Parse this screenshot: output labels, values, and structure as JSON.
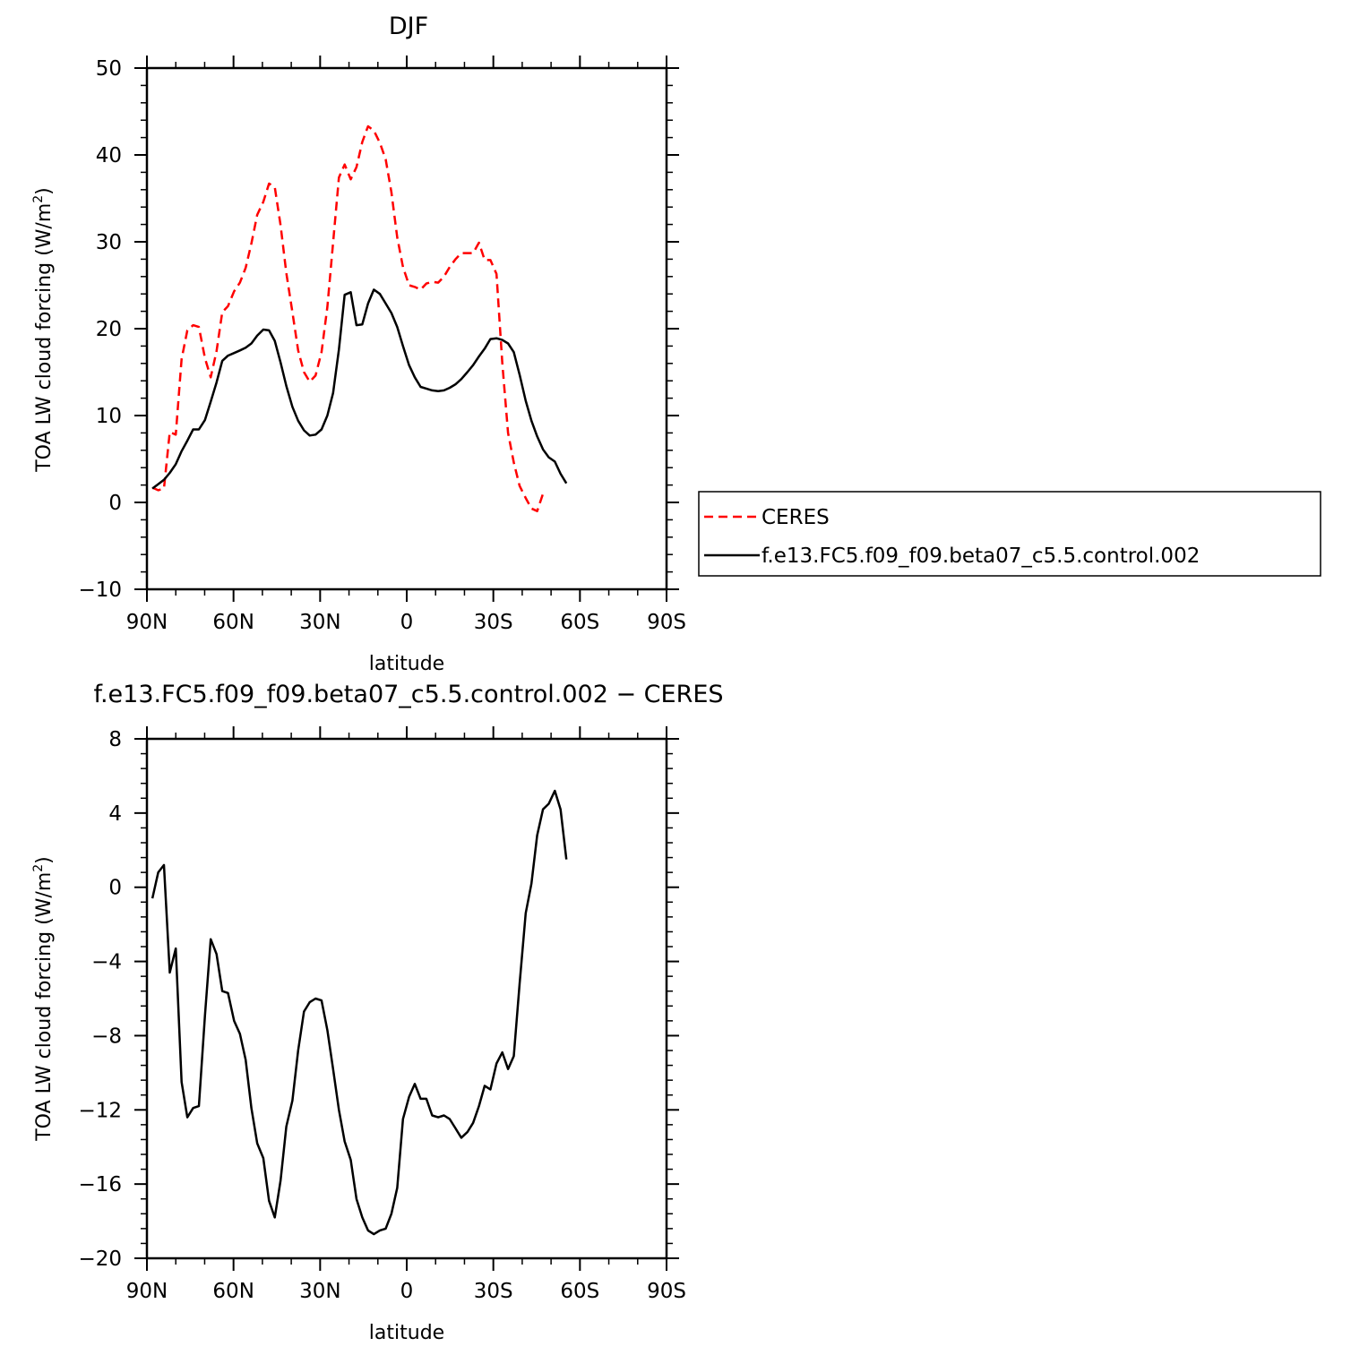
{
  "chart_data": [
    {
      "type": "line",
      "title": "DJF",
      "xlabel": "latitude",
      "ylabel": "TOA LW cloud forcing (W/m²)",
      "ylabel_main": "TOA LW cloud forcing (W/m",
      "ylabel_sup": "2",
      "ylabel_close": ")",
      "xlim": [
        -90,
        90
      ],
      "ylim": [
        -10,
        50
      ],
      "xticks": [
        -90,
        -60,
        -30,
        0,
        30,
        60,
        90
      ],
      "xtick_labels": [
        "90N",
        "60N",
        "30N",
        "0",
        "30S",
        "60S",
        "90S"
      ],
      "yticks": [
        -10,
        0,
        10,
        20,
        30,
        40,
        50
      ],
      "ytick_labels": [
        "−10",
        "0",
        "10",
        "20",
        "30",
        "40",
        "50"
      ],
      "legend_position": "right",
      "series": [
        {
          "name": "CERES",
          "color": "#ff0000",
          "dash": "dashed",
          "x": [
            -88.1,
            -86.1,
            -84.1,
            -82.1,
            -80.0,
            -78.0,
            -76.0,
            -74.0,
            -72.0,
            -69.9,
            -67.9,
            -65.9,
            -63.9,
            -61.9,
            -59.8,
            -57.8,
            -55.8,
            -53.8,
            -51.8,
            -49.7,
            -47.7,
            -45.7,
            -43.7,
            -41.7,
            -39.6,
            -37.6,
            -35.6,
            -33.6,
            -31.6,
            -29.5,
            -27.5,
            -25.5,
            -23.5,
            -21.5,
            -19.4,
            -17.4,
            -15.4,
            -13.4,
            -11.4,
            -9.3,
            -7.3,
            -5.3,
            -3.3,
            -1.3,
            0.8,
            2.8,
            4.8,
            6.8,
            8.8,
            10.9,
            12.9,
            14.9,
            16.9,
            18.9,
            21.0,
            23.0,
            25.0,
            27.0,
            29.0,
            31.1,
            33.1,
            35.1,
            37.1,
            39.1,
            41.2,
            43.2,
            45.2,
            47.2,
            49.2,
            51.3,
            53.3,
            55.3,
            57.3,
            59.3,
            61.4,
            63.4,
            65.4,
            67.4,
            69.4,
            71.5,
            73.5,
            75.5,
            77.5,
            79.5,
            81.6,
            83.6,
            85.6,
            87.6,
            89.6
          ],
          "values": [
            1.7,
            1.4,
            1.6,
            8.1,
            7.8,
            16.5,
            19.8,
            20.4,
            20.2,
            16.6,
            14.4,
            17.4,
            21.9,
            22.6,
            24.3,
            25.3,
            27.0,
            29.8,
            33.1,
            34.6,
            36.7,
            36.3,
            31.9,
            26.4,
            21.9,
            17.5,
            15.0,
            13.9,
            14.6,
            17.3,
            22.5,
            29.9,
            37.4,
            38.9,
            37.2,
            38.6,
            41.5,
            43.3,
            42.8,
            41.4,
            39.5,
            35.7,
            30.5,
            27.1,
            25.0,
            24.8,
            24.5,
            25.2,
            25.4,
            25.3,
            26.0,
            27.1,
            28.0,
            28.7,
            28.7,
            28.7,
            29.9,
            27.9,
            27.9,
            26.3,
            16.0,
            8.0,
            4.6,
            1.9,
            0.5,
            -0.7,
            -1.0,
            1.0,
            null,
            null,
            null,
            null,
            null,
            null,
            null,
            null,
            null,
            null,
            null,
            null,
            null,
            null,
            null,
            null,
            null,
            null,
            null,
            null,
            null
          ]
        },
        {
          "name": "f.e13.FC5.f09_f09.beta07_c5.5.control.002",
          "color": "#000000",
          "dash": "solid",
          "x": [
            -88.1,
            -86.1,
            -84.1,
            -82.1,
            -80.0,
            -78.0,
            -76.0,
            -74.0,
            -72.0,
            -69.9,
            -67.9,
            -65.9,
            -63.9,
            -61.9,
            -59.8,
            -57.8,
            -55.8,
            -53.8,
            -51.8,
            -49.7,
            -47.7,
            -45.7,
            -43.7,
            -41.7,
            -39.6,
            -37.6,
            -35.6,
            -33.6,
            -31.6,
            -29.5,
            -27.5,
            -25.5,
            -23.5,
            -21.5,
            -19.4,
            -17.4,
            -15.4,
            -13.4,
            -11.4,
            -9.3,
            -7.3,
            -5.3,
            -3.3,
            -1.3,
            0.8,
            2.8,
            4.8,
            6.8,
            8.8,
            10.9,
            12.9,
            14.9,
            16.9,
            18.9,
            21.0,
            23.0,
            25.0,
            27.0,
            29.0,
            31.1,
            33.1,
            35.1,
            37.1,
            39.1,
            41.2,
            43.2,
            45.2,
            47.2,
            49.2,
            51.3,
            53.3,
            55.3,
            57.3,
            59.3,
            61.4,
            63.4,
            65.4,
            67.4,
            69.4,
            71.5,
            73.5,
            75.5,
            77.5,
            79.5,
            81.6,
            83.6,
            85.6,
            87.6,
            89.6
          ],
          "values": [
            1.6,
            2.1,
            2.6,
            3.4,
            4.4,
            5.9,
            7.1,
            8.4,
            8.4,
            9.5,
            11.6,
            13.8,
            16.3,
            16.9,
            17.2,
            17.5,
            17.8,
            18.3,
            19.2,
            19.9,
            19.8,
            18.6,
            16.1,
            13.4,
            11.0,
            9.4,
            8.3,
            7.7,
            7.8,
            8.4,
            10.0,
            12.6,
            17.6,
            23.9,
            24.2,
            20.4,
            20.5,
            22.9,
            24.5,
            24.0,
            22.9,
            21.8,
            20.2,
            18.0,
            15.8,
            14.4,
            13.3,
            13.1,
            12.9,
            12.8,
            12.9,
            13.2,
            13.6,
            14.2,
            15.0,
            15.8,
            16.8,
            17.7,
            18.8,
            18.9,
            18.7,
            18.3,
            17.3,
            14.7,
            11.7,
            9.4,
            7.6,
            6.1,
            5.2,
            4.7,
            3.3,
            2.2,
            null,
            null,
            null,
            null,
            null,
            null,
            null,
            null,
            null,
            null,
            null,
            null,
            null,
            null,
            null,
            null,
            null
          ]
        }
      ]
    },
    {
      "type": "line",
      "title": "f.e13.FC5.f09_f09.beta07_c5.5.control.002  −  CERES",
      "xlabel": "latitude",
      "ylabel": "TOA LW cloud forcing (W/m²)",
      "ylabel_main": "TOA LW cloud forcing (W/m",
      "ylabel_sup": "2",
      "ylabel_close": ")",
      "xlim": [
        -90,
        90
      ],
      "ylim": [
        -20,
        8
      ],
      "xticks": [
        -90,
        -60,
        -30,
        0,
        30,
        60,
        90
      ],
      "xtick_labels": [
        "90N",
        "60N",
        "30N",
        "0",
        "30S",
        "60S",
        "90S"
      ],
      "yticks": [
        -20,
        -16,
        -12,
        -8,
        -4,
        0,
        4,
        8
      ],
      "ytick_labels": [
        "−20",
        "−16",
        "−12",
        "−8",
        "−4",
        "0",
        "4",
        "8"
      ],
      "series": [
        {
          "color": "#000000",
          "dash": "solid",
          "x": [
            -88.1,
            -86.1,
            -84.1,
            -82.1,
            -80.0,
            -78.0,
            -76.0,
            -74.0,
            -72.0,
            -69.9,
            -67.9,
            -65.9,
            -63.9,
            -61.9,
            -59.8,
            -57.8,
            -55.8,
            -53.8,
            -51.8,
            -49.7,
            -47.7,
            -45.7,
            -43.7,
            -41.7,
            -39.6,
            -37.6,
            -35.6,
            -33.6,
            -31.6,
            -29.5,
            -27.5,
            -25.5,
            -23.5,
            -21.5,
            -19.4,
            -17.4,
            -15.4,
            -13.4,
            -11.4,
            -9.3,
            -7.3,
            -5.3,
            -3.3,
            -1.3,
            0.8,
            2.8,
            4.8,
            6.8,
            8.8,
            10.9,
            12.9,
            14.9,
            16.9,
            18.9,
            21.0,
            23.0,
            25.0,
            27.0,
            29.0,
            31.1,
            33.1,
            35.1,
            37.1,
            39.1,
            41.2,
            43.2,
            45.2,
            47.2,
            49.2,
            51.3,
            53.3,
            55.3,
            57.3,
            59.3,
            61.4,
            63.4,
            65.4,
            67.4,
            69.4,
            71.5,
            73.5,
            75.5,
            77.5,
            79.5,
            81.6,
            83.6,
            85.6,
            87.6,
            89.6
          ],
          "values": [
            -0.6,
            0.8,
            1.2,
            -4.6,
            -3.3,
            -10.5,
            -12.4,
            -11.9,
            -11.8,
            -6.9,
            -2.8,
            -3.6,
            -5.6,
            -5.7,
            -7.2,
            -7.9,
            -9.3,
            -11.9,
            -13.8,
            -14.6,
            -16.9,
            -17.8,
            -15.8,
            -12.9,
            -11.5,
            -8.8,
            -6.7,
            -6.2,
            -6.0,
            -6.1,
            -7.7,
            -9.8,
            -12.0,
            -13.7,
            -14.7,
            -16.8,
            -17.8,
            -18.5,
            -18.7,
            -18.5,
            -18.4,
            -17.6,
            -16.2,
            -12.5,
            -11.3,
            -10.6,
            -11.4,
            -11.4,
            -12.3,
            -12.4,
            -12.3,
            -12.5,
            -13.0,
            -13.5,
            -13.2,
            -12.7,
            -11.8,
            -10.7,
            -10.9,
            -9.5,
            -8.9,
            -9.8,
            -9.1,
            -5.2,
            -1.4,
            0.2,
            2.8,
            4.2,
            4.5,
            5.2,
            4.2,
            1.5,
            null,
            null,
            null,
            null,
            null,
            null,
            null,
            null,
            null,
            null,
            null,
            null,
            null,
            null,
            null,
            null,
            null
          ]
        }
      ]
    }
  ]
}
